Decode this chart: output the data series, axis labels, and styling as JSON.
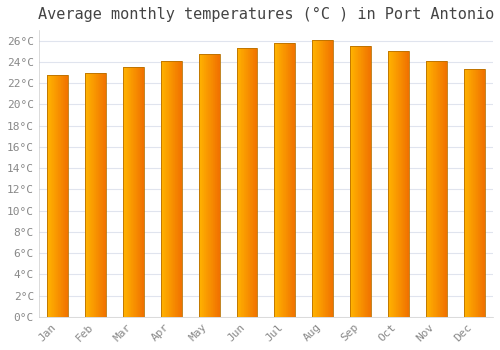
{
  "title": "Average monthly temperatures (°C ) in Port Antonio",
  "months": [
    "Jan",
    "Feb",
    "Mar",
    "Apr",
    "May",
    "Jun",
    "Jul",
    "Aug",
    "Sep",
    "Oct",
    "Nov",
    "Dec"
  ],
  "temperatures": [
    22.8,
    23.0,
    23.5,
    24.1,
    24.7,
    25.3,
    25.8,
    26.1,
    25.5,
    25.0,
    24.1,
    23.3
  ],
  "bar_color_left": "#FFB300",
  "bar_color_right": "#F07000",
  "bar_edge_color": "#B87000",
  "ylim": [
    0,
    27
  ],
  "ytick_step": 2,
  "background_color": "#ffffff",
  "plot_bg_color": "#ffffff",
  "grid_color": "#e0e4ee",
  "title_fontsize": 11,
  "tick_fontsize": 8,
  "title_color": "#444444",
  "tick_color": "#888888",
  "title_font": "monospace",
  "tick_font": "monospace",
  "bar_width": 0.55
}
